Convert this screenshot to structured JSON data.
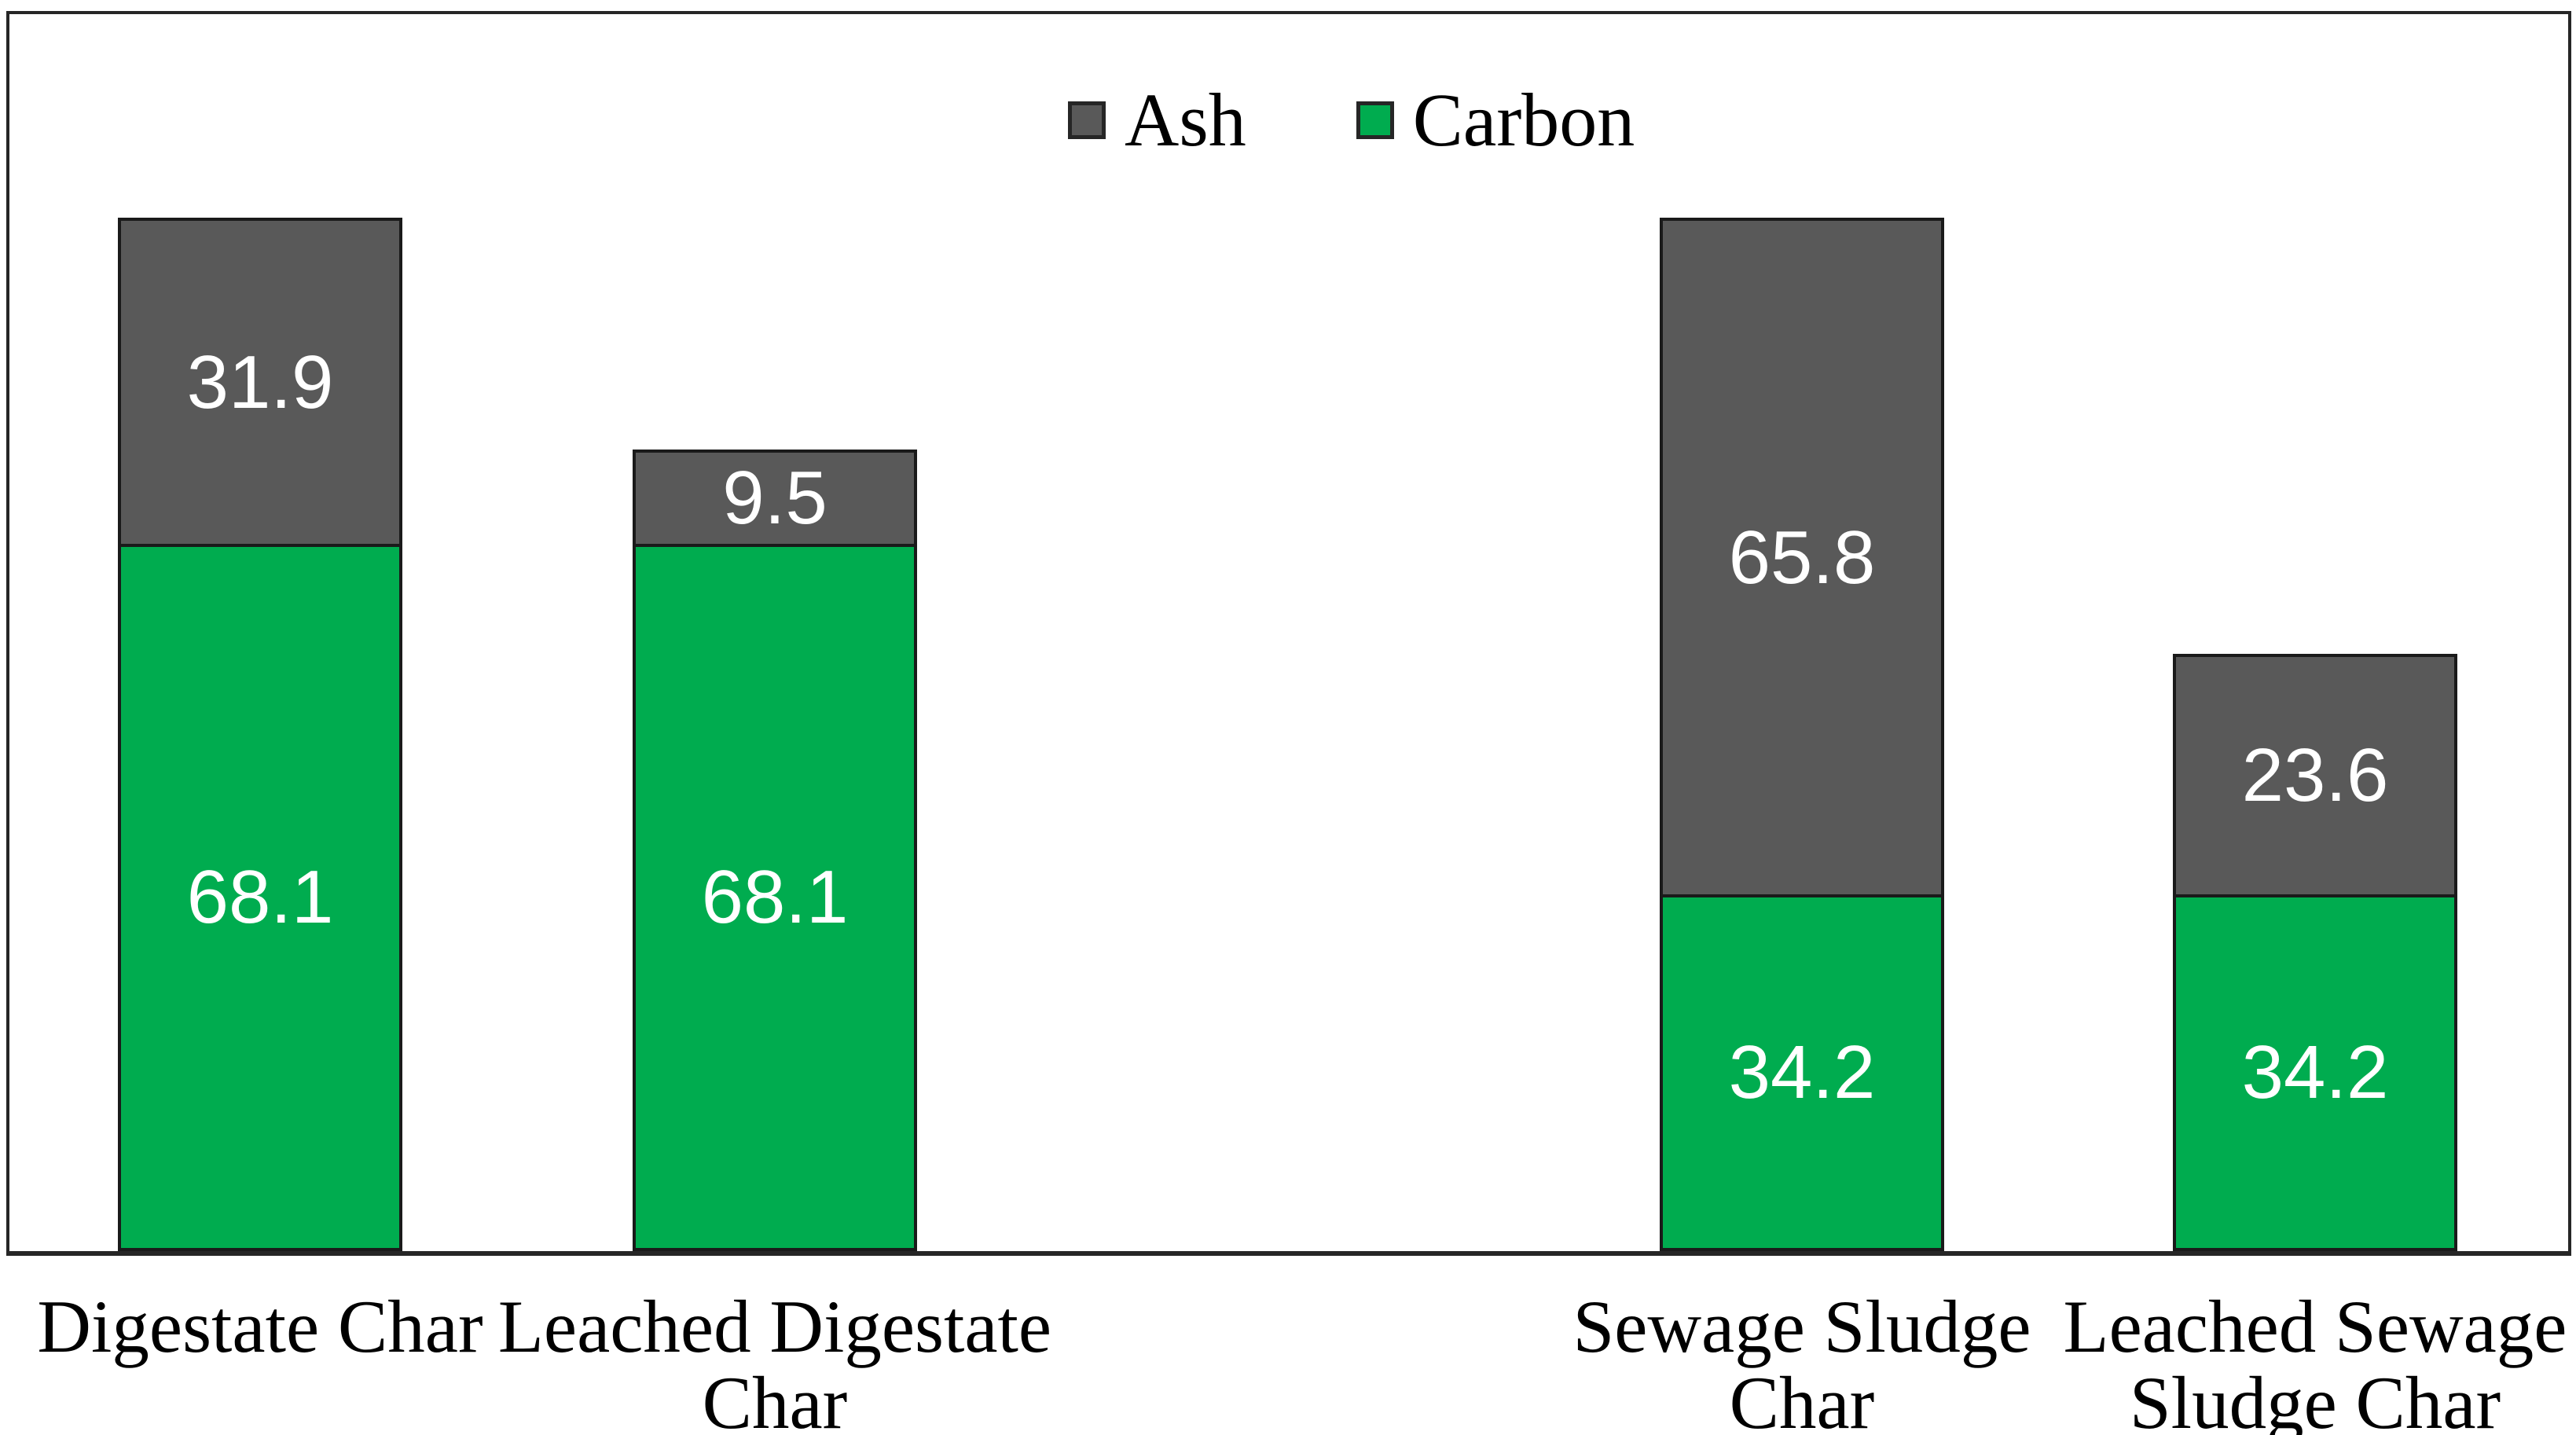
{
  "chart_data": {
    "type": "bar",
    "stacked": true,
    "title": "",
    "xlabel": "",
    "ylabel": "",
    "categories": [
      "Digestate Char",
      "Leached Digestate\nChar",
      "Sewage Sludge\nChar",
      "Leached Sewage\nSludge Char"
    ],
    "series": [
      {
        "name": "Carbon",
        "color": "#00AC4F",
        "values": [
          68.1,
          68.1,
          34.2,
          34.2
        ]
      },
      {
        "name": "Ash",
        "color": "#595959",
        "values": [
          31.9,
          9.5,
          65.8,
          23.6
        ]
      }
    ],
    "legend": {
      "position": "top-center",
      "items": [
        {
          "label": "Ash",
          "color": "#595959"
        },
        {
          "label": "Carbon",
          "color": "#00AC4F"
        }
      ]
    },
    "value_labels": {
      "position": "center",
      "color": "#ffffff",
      "decimals": 1
    },
    "ylim": [
      0,
      120
    ],
    "grid": false,
    "axis_line_color": "#262626",
    "bar_border_color": "#1a1a1a",
    "background_color": "#ffffff"
  }
}
